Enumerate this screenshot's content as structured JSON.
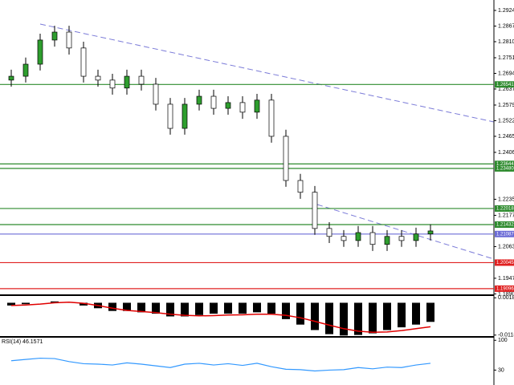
{
  "chart_data": [
    {
      "type": "candlestick",
      "open": [
        1.267,
        1.2684,
        1.2728,
        1.2816,
        1.2845,
        1.2787,
        1.2684,
        1.267,
        1.2641,
        1.2684,
        1.2655,
        1.2582,
        1.2494,
        1.2582,
        1.2611,
        1.2567,
        1.2588,
        1.2553,
        1.2597,
        1.2465,
        1.2304,
        1.2261,
        1.2129,
        1.21,
        1.2085,
        1.2114,
        1.2071,
        1.21,
        1.2085,
        1.2109
      ],
      "high": [
        1.2708,
        1.2752,
        1.2839,
        1.2868,
        1.2868,
        1.281,
        1.2708,
        1.2693,
        1.2708,
        1.2708,
        1.2678,
        1.2605,
        1.2605,
        1.2635,
        1.2635,
        1.2611,
        1.2611,
        1.262,
        1.262,
        1.2489,
        1.2328,
        1.2284,
        1.2152,
        1.2123,
        1.2138,
        1.2138,
        1.2123,
        1.2123,
        1.2132,
        1.2144
      ],
      "low": [
        1.2646,
        1.2661,
        1.2705,
        1.2792,
        1.2763,
        1.2661,
        1.2646,
        1.2617,
        1.2617,
        1.2632,
        1.2559,
        1.2471,
        1.2471,
        1.2559,
        1.2544,
        1.2544,
        1.2529,
        1.2529,
        1.2442,
        1.2281,
        1.2237,
        1.2106,
        1.2076,
        1.2062,
        1.2062,
        1.2047,
        1.2047,
        1.2062,
        1.2062,
        1.2085
      ],
      "close": [
        1.2684,
        1.2728,
        1.2816,
        1.2845,
        1.2787,
        1.2684,
        1.267,
        1.2641,
        1.2684,
        1.2655,
        1.2582,
        1.2494,
        1.2582,
        1.2611,
        1.2567,
        1.2588,
        1.2553,
        1.2597,
        1.2465,
        1.2304,
        1.2261,
        1.2129,
        1.21,
        1.2085,
        1.2114,
        1.2071,
        1.21,
        1.2085,
        1.2109,
        1.212
      ],
      "up_color": "#2e9e2e",
      "down_color": "#ffffff",
      "ylim": [
        1.188,
        1.2962
      ],
      "yticks": [
        {
          "value": 1.2924,
          "label": "1.29240"
        },
        {
          "value": 1.2867,
          "label": "1.28670"
        },
        {
          "value": 1.281,
          "label": "1.28100"
        },
        1.27515,
        1.26945,
        1.26375,
        {
          "value": 1.2579,
          "label": "1.25790"
        },
        {
          "value": 1.2522,
          "label": "1.25220"
        },
        {
          "value": 1.2465,
          "label": "1.24650"
        },
        1.24065,
        1.22355,
        {
          "value": 1.2177,
          "label": "1.21770"
        },
        {
          "value": 1.2063,
          "label": "1.20630"
        },
        1.19475,
        1.18905
      ],
      "levels": {
        "values": [
          1.26541,
          1.23644,
          1.2348,
          1.22018,
          1.21432,
          1.21087,
          1.20045,
          1.19096
        ],
        "value_labels": [
          "1.26541",
          "1.23644",
          "1.23480",
          "1.22018",
          "1.21432",
          "1.21087",
          "1.20045",
          "1.19096"
        ],
        "colors": [
          "#2e8b2e",
          "#2e8b2e",
          "#2e8b2e",
          "#2e8b2e",
          "#2e8b2e",
          "#6b6bd6",
          "#e02020",
          "#e02020"
        ]
      }
    },
    {
      "type": "bar",
      "values": [
        -0.001,
        -0.0005,
        0,
        0.0005,
        0.0003,
        -0.001,
        -0.002,
        -0.003,
        -0.003,
        -0.0035,
        -0.004,
        -0.005,
        -0.005,
        -0.0045,
        -0.004,
        -0.004,
        -0.004,
        -0.0035,
        -0.004,
        -0.006,
        -0.008,
        -0.01,
        -0.0115,
        -0.012,
        -0.0118,
        -0.0112,
        -0.01,
        -0.009,
        -0.008,
        -0.007
      ],
      "color": "#000000",
      "line": {
        "values": [
          -0.001,
          -0.0008,
          -0.0005,
          0,
          0.0002,
          -0.0002,
          -0.001,
          -0.002,
          -0.0028,
          -0.0032,
          -0.0036,
          -0.0042,
          -0.0046,
          -0.0048,
          -0.0047,
          -0.0045,
          -0.0044,
          -0.0042,
          -0.0042,
          -0.0046,
          -0.0055,
          -0.0068,
          -0.0082,
          -0.0095,
          -0.0104,
          -0.0108,
          -0.0107,
          -0.0102,
          -0.0095,
          -0.0088
        ],
        "color": "#e00000"
      },
      "ylim": [
        -0.0125,
        0.0022
      ],
      "yticks": [
        0.00182,
        -0.01185
      ]
    },
    {
      "type": "line",
      "title": "RSI(14) 46.1571",
      "values": [
        52,
        55,
        58,
        57,
        50,
        45,
        44,
        42,
        47,
        44,
        40,
        36,
        44,
        46,
        42,
        45,
        41,
        46,
        38,
        32,
        31,
        28,
        30,
        31,
        36,
        33,
        37,
        36,
        42,
        46
      ],
      "color": "#3399ff",
      "ylim": [
        -5,
        108
      ],
      "yticks": [
        100,
        30
      ]
    }
  ]
}
